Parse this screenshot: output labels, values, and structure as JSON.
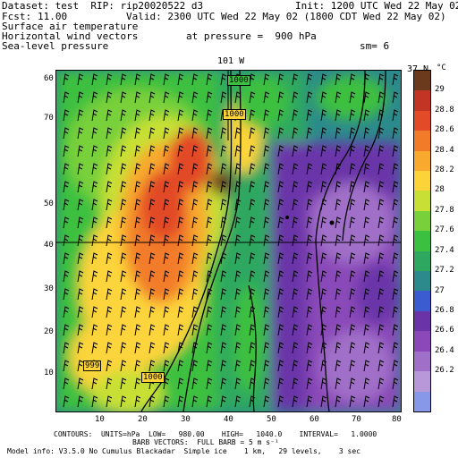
{
  "header": {
    "dataset_line": "Dataset: test  RIP: rip20020522 d3",
    "init_line": "Init: 1200 UTC Wed 22 May 02",
    "fcst_label": "Fcst:",
    "fcst_value": "11.00",
    "valid_line": "Valid: 2300 UTC Wed 22 May 02 (1800 CDT Wed 22 May 02)",
    "field1": "Surface air temperature",
    "field2": "Horizontal wind vectors",
    "pressure_line": "at pressure =  900 hPa",
    "field3": "Sea-level pressure",
    "sm_line": "sm= 6"
  },
  "map": {
    "lon_label": "101 W",
    "lat_label": "37 N",
    "contour_labels": [
      "1000",
      "1000",
      "999",
      "1000"
    ],
    "x_ticks": [
      "10",
      "20",
      "30",
      "40",
      "50",
      "60",
      "70",
      "80"
    ],
    "y_ticks": [
      "60",
      "50",
      "40",
      "30",
      "20",
      "10"
    ],
    "y_tick_70": "70"
  },
  "colorbar": {
    "unit": "°C",
    "labels": [
      "29",
      "28.8",
      "28.6",
      "28.4",
      "28.2",
      "28",
      "27.8",
      "27.6",
      "27.4",
      "27.2",
      "27",
      "26.8",
      "26.6",
      "26.4",
      "26.2"
    ],
    "colors": [
      "#6b3a1c",
      "#c23424",
      "#e24a28",
      "#f27b2a",
      "#f8a92e",
      "#fcd43a",
      "#c8e036",
      "#78d03a",
      "#3cc040",
      "#2ea860",
      "#2c8a8c",
      "#3a5cd0",
      "#6a34a8",
      "#8a48b8",
      "#a070c8",
      "#b898d8",
      "#8898e8"
    ]
  },
  "footer": {
    "line1": "CONTOURS:  UNITS=hPa  LOW=   980.00    HIGH=   1040.0    INTERVAL=   1.0000",
    "line2": "BARB VECTORS:  FULL BARB = 5 m s⁻¹",
    "line3": "Model info: V3.5.0 No Cumulus Blackadar  Simple ice    1 km,   29 levels,    3 sec"
  }
}
